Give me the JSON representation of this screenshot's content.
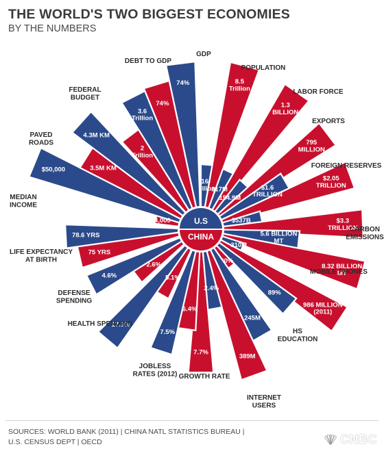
{
  "header": {
    "title": "THE WORLD'S TWO BIGGEST ECONOMIES",
    "subtitle": "BY THE NUMBERS"
  },
  "footer": {
    "sources_line1": "SOURCES: WORLD BANK (2011) | CHINA NATL STATISTICS BUREAU |",
    "sources_line2": "U.S. CENSUS DEPT | OECD",
    "brand": "CNBC"
  },
  "colors": {
    "us": "#2b4a8b",
    "china": "#c8102e",
    "label": "#2b2b2b",
    "outline": "#ffffff"
  },
  "chart_data": {
    "type": "radial-bar",
    "center_labels": {
      "top": "U.S",
      "bottom": "CHINA"
    },
    "series": [
      {
        "name": "U.S",
        "color": "#2b4a8b"
      },
      {
        "name": "CHINA",
        "color": "#c8102e"
      }
    ],
    "categories": [
      {
        "label_lines": [
          "GDP"
        ],
        "us": "16 Trillion",
        "china": "8.5 Trillion"
      },
      {
        "label_lines": [
          "POPULATION"
        ],
        "us": "317M",
        "china": "1.3 BILLION"
      },
      {
        "label_lines": [
          "LABOR FORCE"
        ],
        "us": "154.9M",
        "china": "795 MILLION"
      },
      {
        "label_lines": [
          "EXPORTS"
        ],
        "us": "$1.6 TRILLION",
        "china": "$2.05 TRILLION"
      },
      {
        "label_lines": [
          "FOREIGN RESERVES"
        ],
        "us": "$537B",
        "china": "$3.3 TRILLION"
      },
      {
        "label_lines": [
          "CARBON",
          "EMISSIONS"
        ],
        "us": "5.6 BILLION MT",
        "china": "8.32 BILLION MT"
      },
      {
        "label_lines": [
          "MOBILE PHONES"
        ],
        "us": "310M",
        "china": "986 MILLION (2011)"
      },
      {
        "label_lines": [
          "HS",
          "EDUCATION"
        ],
        "us": "89%",
        "china": "20%"
      },
      {
        "label_lines": [
          "INTERNET",
          "USERS"
        ],
        "us": "245M",
        "china": "389M"
      },
      {
        "label_lines": [
          "GROWTH RATE"
        ],
        "us": "2.4%",
        "china": "7.7%"
      },
      {
        "label_lines": [
          "JOBLESS",
          "RATES (2012)"
        ],
        "us": "7.5%",
        "china": "6.4%"
      },
      {
        "label_lines": [
          "HEALTH SPENDING"
        ],
        "us": "17.9%",
        "china": "5.1%"
      },
      {
        "label_lines": [
          "DEFENSE",
          "SPENDING"
        ],
        "us": "4.6%",
        "china": "2.6%"
      },
      {
        "label_lines": [
          "LIFE EXPECTANCY",
          "AT BIRTH"
        ],
        "us": "78.6 YRS",
        "china": "75 YRS"
      },
      {
        "label_lines": [
          "MEDIAN",
          "INCOME"
        ],
        "us": "$50,000",
        "china": "$4,000"
      },
      {
        "label_lines": [
          "PAVED",
          "ROADS"
        ],
        "us": "4.3M KM",
        "china": "3.5M KM"
      },
      {
        "label_lines": [
          "FEDERAL",
          "BUDGET"
        ],
        "us": "3.6 Trillion",
        "china": "2 Trillion"
      },
      {
        "label_lines": [
          "DEBT TO GDP"
        ],
        "us": "74%",
        "china": "74%"
      }
    ]
  }
}
